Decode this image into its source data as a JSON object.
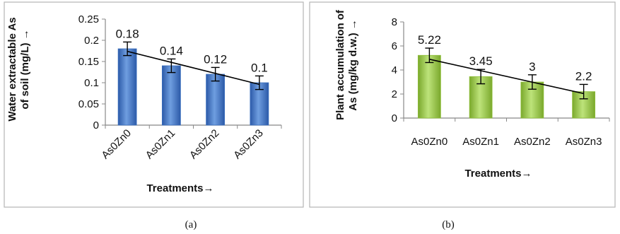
{
  "chart_data": [
    {
      "type": "bar",
      "panel_label": "(a)",
      "categories": [
        "As0Zn0",
        "As0Zn1",
        "As0Zn2",
        "As0Zn3"
      ],
      "values": [
        0.18,
        0.14,
        0.12,
        0.1
      ],
      "value_labels": [
        "0.18",
        "0.14",
        "0.12",
        "0.1"
      ],
      "error": [
        0.016,
        0.016,
        0.016,
        0.016
      ],
      "ylabel_line1": "Water extractable As",
      "ylabel_line2": "of soil (mg/L) →",
      "xlabel": "Treatments→",
      "ylim": [
        0,
        0.25
      ],
      "yticks": [
        "0",
        "0.05",
        "0.1",
        "0.15",
        "0.2",
        "0.25"
      ],
      "trendline": "linear",
      "bar_color": "#3a6fbf",
      "x_tick_rotation": "-45deg",
      "grid": false
    },
    {
      "type": "bar",
      "panel_label": "(b)",
      "categories": [
        "As0Zn0",
        "As0Zn1",
        "As0Zn2",
        "As0Zn3"
      ],
      "values": [
        5.22,
        3.45,
        3,
        2.2
      ],
      "value_labels": [
        "5.22",
        "3.45",
        "3",
        "2.2"
      ],
      "error": [
        0.6,
        0.6,
        0.6,
        0.6
      ],
      "ylabel_line1": "Plant accumulation of",
      "ylabel_line2": "As (mg/kg d.w.) →",
      "xlabel": "Treatments→",
      "ylim": [
        0,
        8
      ],
      "yticks": [
        "0",
        "2",
        "4",
        "6",
        "8"
      ],
      "trendline": "linear",
      "bar_color": "#8fbf3a",
      "x_tick_rotation": "none",
      "grid": false
    }
  ]
}
